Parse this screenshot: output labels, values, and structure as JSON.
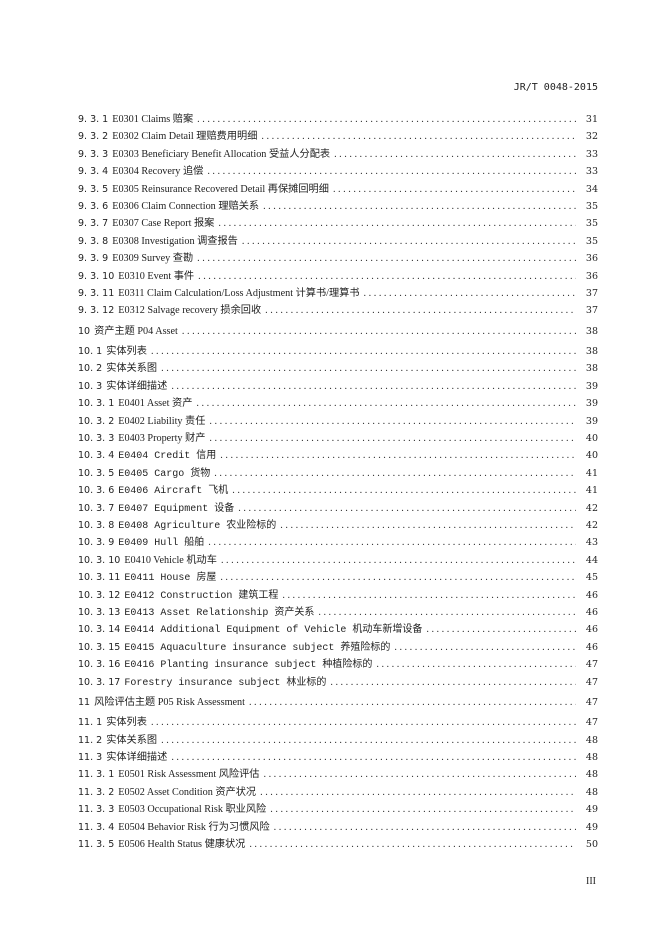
{
  "header": {
    "standard_code": "JR/T 0048-2015"
  },
  "toc": [
    {
      "num": "9. 3. 1",
      "title": "E0301 Claims 赔案",
      "page": "31"
    },
    {
      "num": "9. 3. 2",
      "title": "E0302 Claim Detail 理赔费用明细",
      "page": "32"
    },
    {
      "num": "9. 3. 3",
      "title": "E0303 Beneficiary Benefit Allocation 受益人分配表",
      "page": "33"
    },
    {
      "num": "9. 3. 4",
      "title": "E0304 Recovery 追偿",
      "page": "33"
    },
    {
      "num": "9. 3. 5",
      "title": "E0305 Reinsurance Recovered Detail 再保摊回明细",
      "page": "34"
    },
    {
      "num": "9. 3. 6",
      "title": "E0306 Claim Connection 理赔关系",
      "page": "35"
    },
    {
      "num": "9. 3. 7",
      "title": "E0307 Case Report 报案",
      "page": "35"
    },
    {
      "num": "9. 3. 8",
      "title": "E0308 Investigation 调查报告",
      "page": "35"
    },
    {
      "num": "9. 3. 9",
      "title": "E0309 Survey 查勘",
      "page": "36"
    },
    {
      "num": "9. 3. 10",
      "title": "E0310 Event 事件",
      "page": "36"
    },
    {
      "num": "9. 3. 11",
      "title": "E0311 Claim Calculation/Loss Adjustment 计算书/理算书",
      "page": "37"
    },
    {
      "num": "9. 3. 12",
      "title": "E0312 Salvage recovery  损余回收",
      "page": "37"
    },
    {
      "num": "10",
      "title": "资产主题 P04 Asset",
      "page": "38"
    },
    {
      "num": "10. 1",
      "title": "实体列表",
      "page": "38"
    },
    {
      "num": "10. 2",
      "title": "实体关系图",
      "page": "38"
    },
    {
      "num": "10. 3",
      "title": "实体详细描述",
      "page": "39"
    },
    {
      "num": "10. 3. 1",
      "title": "E0401 Asset 资产",
      "page": "39"
    },
    {
      "num": "10. 3. 2",
      "title": "E0402 Liability 责任",
      "page": "39"
    },
    {
      "num": "10. 3. 3",
      "title": "E0403 Property 财产",
      "page": "40"
    },
    {
      "num": "10. 3. 4",
      "title": "E0404 Credit 信用",
      "page": "40"
    },
    {
      "num": "10. 3. 5",
      "title": "E0405 Cargo 货物",
      "page": "41"
    },
    {
      "num": "10. 3. 6",
      "title": "E0406 Aircraft 飞机",
      "page": "41"
    },
    {
      "num": "10. 3. 7",
      "title": "E0407 Equipment 设备",
      "page": "42"
    },
    {
      "num": "10. 3. 8",
      "title": "E0408 Agriculture 农业险标的",
      "page": "42"
    },
    {
      "num": "10. 3. 9",
      "title": "E0409 Hull 船舶",
      "page": "43"
    },
    {
      "num": "10. 3. 10",
      "title": "E0410 Vehicle 机动车",
      "page": "44"
    },
    {
      "num": "10. 3. 11",
      "title": "E0411 House 房屋",
      "page": "45"
    },
    {
      "num": "10. 3. 12",
      "title": "E0412 Construction 建筑工程",
      "page": "46"
    },
    {
      "num": "10. 3. 13",
      "title": "E0413 Asset Relationship 资产关系",
      "page": "46"
    },
    {
      "num": "10. 3. 14",
      "title": "E0414 Additional Equipment of Vehicle 机动车新增设备",
      "page": "46"
    },
    {
      "num": "10. 3. 15",
      "title": "E0415 Aquaculture insurance subject 养殖险标的",
      "page": "46"
    },
    {
      "num": "10. 3. 16",
      "title": "E0416 Planting insurance subject 种植险标的",
      "page": "47"
    },
    {
      "num": "10. 3. 17",
      "title": "Forestry insurance subject 林业标的",
      "page": "47"
    },
    {
      "num": "11",
      "title": "风险评估主题 P05 Risk Assessment",
      "page": "47"
    },
    {
      "num": "11. 1",
      "title": "实体列表",
      "page": "47"
    },
    {
      "num": "11. 2",
      "title": "实体关系图",
      "page": "48"
    },
    {
      "num": "11. 3",
      "title": "实体详细描述",
      "page": "48"
    },
    {
      "num": "11. 3. 1",
      "title": "E0501 Risk Assessment 风险评估",
      "page": "48"
    },
    {
      "num": "11. 3. 2",
      "title": "E0502 Asset Condition 资产状况",
      "page": "48"
    },
    {
      "num": "11. 3. 3",
      "title": "E0503 Occupational Risk 职业风险",
      "page": "49"
    },
    {
      "num": "11. 3. 4",
      "title": "E0504 Behavior Risk 行为习惯风险",
      "page": "49"
    },
    {
      "num": "11. 3. 5",
      "title": "E0506 Health Status 健康状况",
      "page": "50"
    }
  ],
  "footer": {
    "page_number": "III"
  }
}
